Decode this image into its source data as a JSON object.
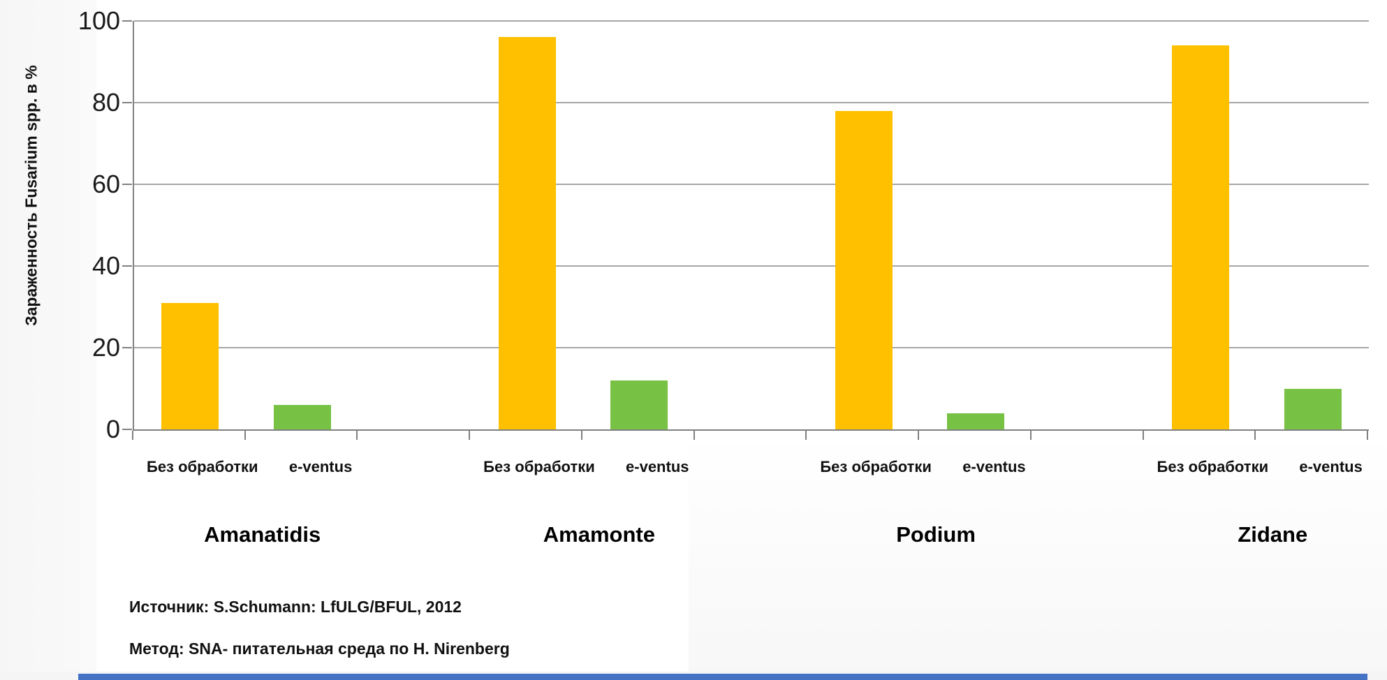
{
  "chart_data": {
    "type": "bar",
    "title": "",
    "xlabel": "",
    "ylabel": "Зараженность Fusarium spp. в %",
    "ylim": [
      0,
      100
    ],
    "yticks": [
      0,
      20,
      40,
      60,
      80,
      100
    ],
    "grid": true,
    "legend": "none",
    "categories_per_group": [
      "Без обработки",
      "e-ventus"
    ],
    "groups": [
      {
        "name": "Amanatidis",
        "bars": [
          {
            "label": "Без обработки",
            "value": 31
          },
          {
            "label": "e-ventus",
            "value": 6
          }
        ]
      },
      {
        "name": "Amamonte",
        "bars": [
          {
            "label": "Без обработки",
            "value": 96
          },
          {
            "label": "e-ventus",
            "value": 12
          }
        ]
      },
      {
        "name": "Podium",
        "bars": [
          {
            "label": "Без обработки",
            "value": 78
          },
          {
            "label": "e-ventus",
            "value": 4
          }
        ]
      },
      {
        "name": "Zidane",
        "bars": [
          {
            "label": "Без обработки",
            "value": 94
          },
          {
            "label": "e-ventus",
            "value": 10
          }
        ]
      }
    ],
    "series_colors": {
      "Без обработки": "#FFC000",
      "e-ventus": "#77C144"
    },
    "axis_color": "#808080",
    "gridline_color": "#A6A6A6"
  },
  "footer": {
    "source_line": "Источник: S.Schumann: LfULG/BFUL, 2012",
    "method_line": "Метод: SNA- питательная среда по H. Nirenberg"
  },
  "decoration": {
    "bottom_bar_color": "#4472C4"
  }
}
